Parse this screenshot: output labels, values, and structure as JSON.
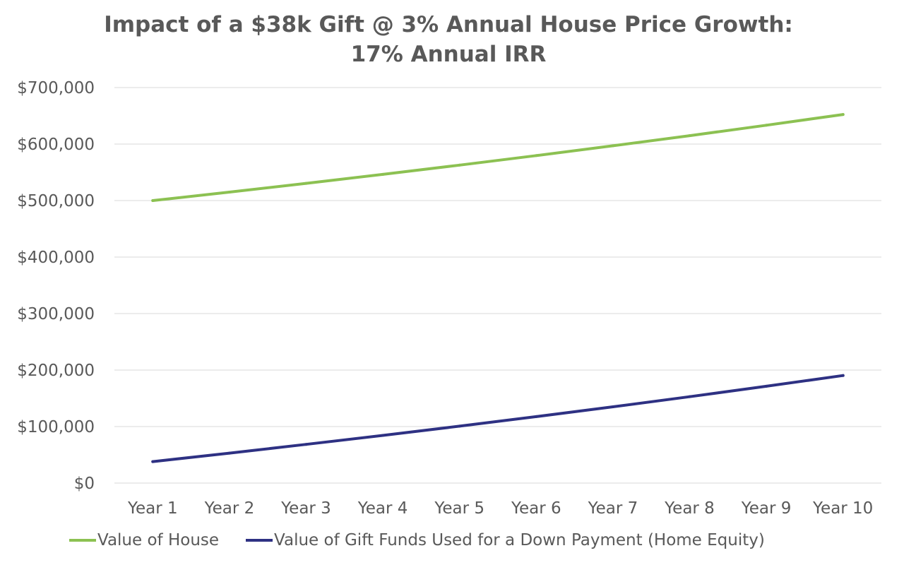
{
  "chart_data": {
    "type": "line",
    "title_lines": [
      "Impact of a $38k Gift @ 3% Annual House Price Growth:",
      "17% Annual IRR"
    ],
    "categories": [
      "Year 1",
      "Year 2",
      "Year 3",
      "Year 4",
      "Year 5",
      "Year 6",
      "Year 7",
      "Year 8",
      "Year 9",
      "Year 10"
    ],
    "y_ticks": [
      "$0",
      "$100,000",
      "$200,000",
      "$300,000",
      "$400,000",
      "$500,000",
      "$600,000",
      "$700,000"
    ],
    "ylim": [
      0,
      700000
    ],
    "grid": true,
    "legend_position": "bottom",
    "series": [
      {
        "name": "Value of House",
        "color": "#8CC152",
        "values": [
          500000,
          515000,
          530450,
          546364,
          562754,
          579637,
          597026,
          614937,
          633385,
          652387
        ]
      },
      {
        "name": "Value of Gift Funds Used for a Down Payment (Home Equity)",
        "color": "#2E3183",
        "values": [
          38000,
          53000,
          68450,
          84364,
          100754,
          117637,
          135026,
          152937,
          171385,
          190387
        ]
      }
    ]
  }
}
